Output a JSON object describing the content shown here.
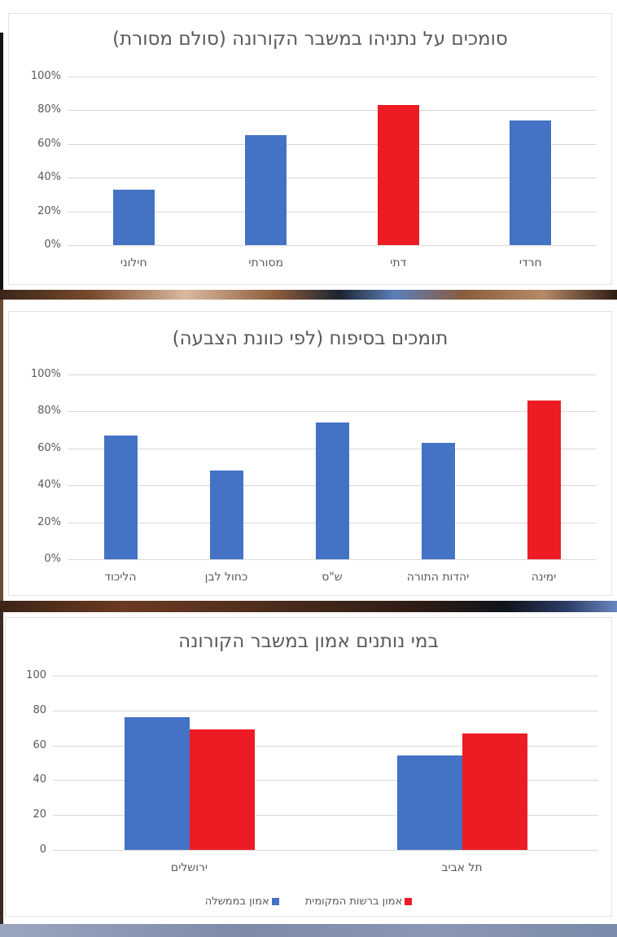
{
  "colors": {
    "blue": "#4472c4",
    "red": "#ed1c24",
    "gridline": "#d9d9d9",
    "text": "#595959"
  },
  "chart_data": [
    {
      "type": "bar",
      "title": "סומכים על נתניהו במשבר הקורונה (סולם מסורת)",
      "xlabel": "",
      "ylabel": "",
      "ylim": [
        0,
        100
      ],
      "yticks": [
        "0%",
        "20%",
        "40%",
        "60%",
        "80%",
        "100%"
      ],
      "grid": true,
      "categories": [
        "חילוני",
        "מסורתי",
        "דתי",
        "חרדי"
      ],
      "values": [
        33,
        65,
        83,
        74
      ],
      "bar_colors": [
        "#4472c4",
        "#4472c4",
        "#ed1c24",
        "#4472c4"
      ],
      "unit": "%"
    },
    {
      "type": "bar",
      "title": "תומכים בסיפוח (לפי כוונת הצבעה)",
      "xlabel": "",
      "ylabel": "",
      "ylim": [
        0,
        100
      ],
      "yticks": [
        "0%",
        "20%",
        "40%",
        "60%",
        "80%",
        "100%"
      ],
      "grid": true,
      "categories": [
        "הליכוד",
        "כחול לבן",
        "ש\"ס",
        "יהדות התורה",
        "ימינה"
      ],
      "values": [
        67,
        48,
        74,
        63,
        86
      ],
      "bar_colors": [
        "#4472c4",
        "#4472c4",
        "#4472c4",
        "#4472c4",
        "#ed1c24"
      ],
      "unit": "%"
    },
    {
      "type": "bar",
      "title": "במי נותנים אמון במשבר הקורונה",
      "xlabel": "",
      "ylabel": "",
      "ylim": [
        0,
        100
      ],
      "yticks": [
        "0",
        "20",
        "40",
        "60",
        "80",
        "100"
      ],
      "grid": true,
      "categories": [
        "ירושלים",
        "תל אביב"
      ],
      "series": [
        {
          "name": "אמון בממשלה",
          "color": "#4472c4",
          "values": [
            76,
            54
          ]
        },
        {
          "name": "אמון ברשות המקומית",
          "color": "#ed1c24",
          "values": [
            69,
            67
          ]
        }
      ],
      "legend_position": "bottom"
    }
  ]
}
